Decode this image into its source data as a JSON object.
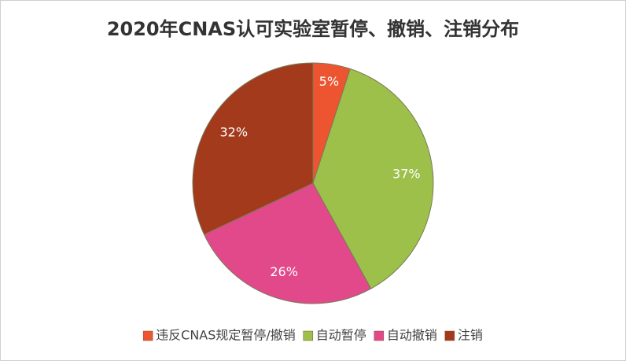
{
  "chart_data": {
    "type": "pie",
    "title": "2020年CNAS认可实验室暂停、撤销、注销分布",
    "categories": [
      "违反CNAS规定暂停/撤销",
      "自动暂停",
      "自动撤销",
      "注销"
    ],
    "values": [
      5,
      37,
      26,
      32
    ],
    "value_labels": [
      "5%",
      "37%",
      "26%",
      "32%"
    ],
    "colors": [
      "#ec5530",
      "#9cc04a",
      "#e2498a",
      "#a33a1c"
    ],
    "legend": "bottom"
  }
}
